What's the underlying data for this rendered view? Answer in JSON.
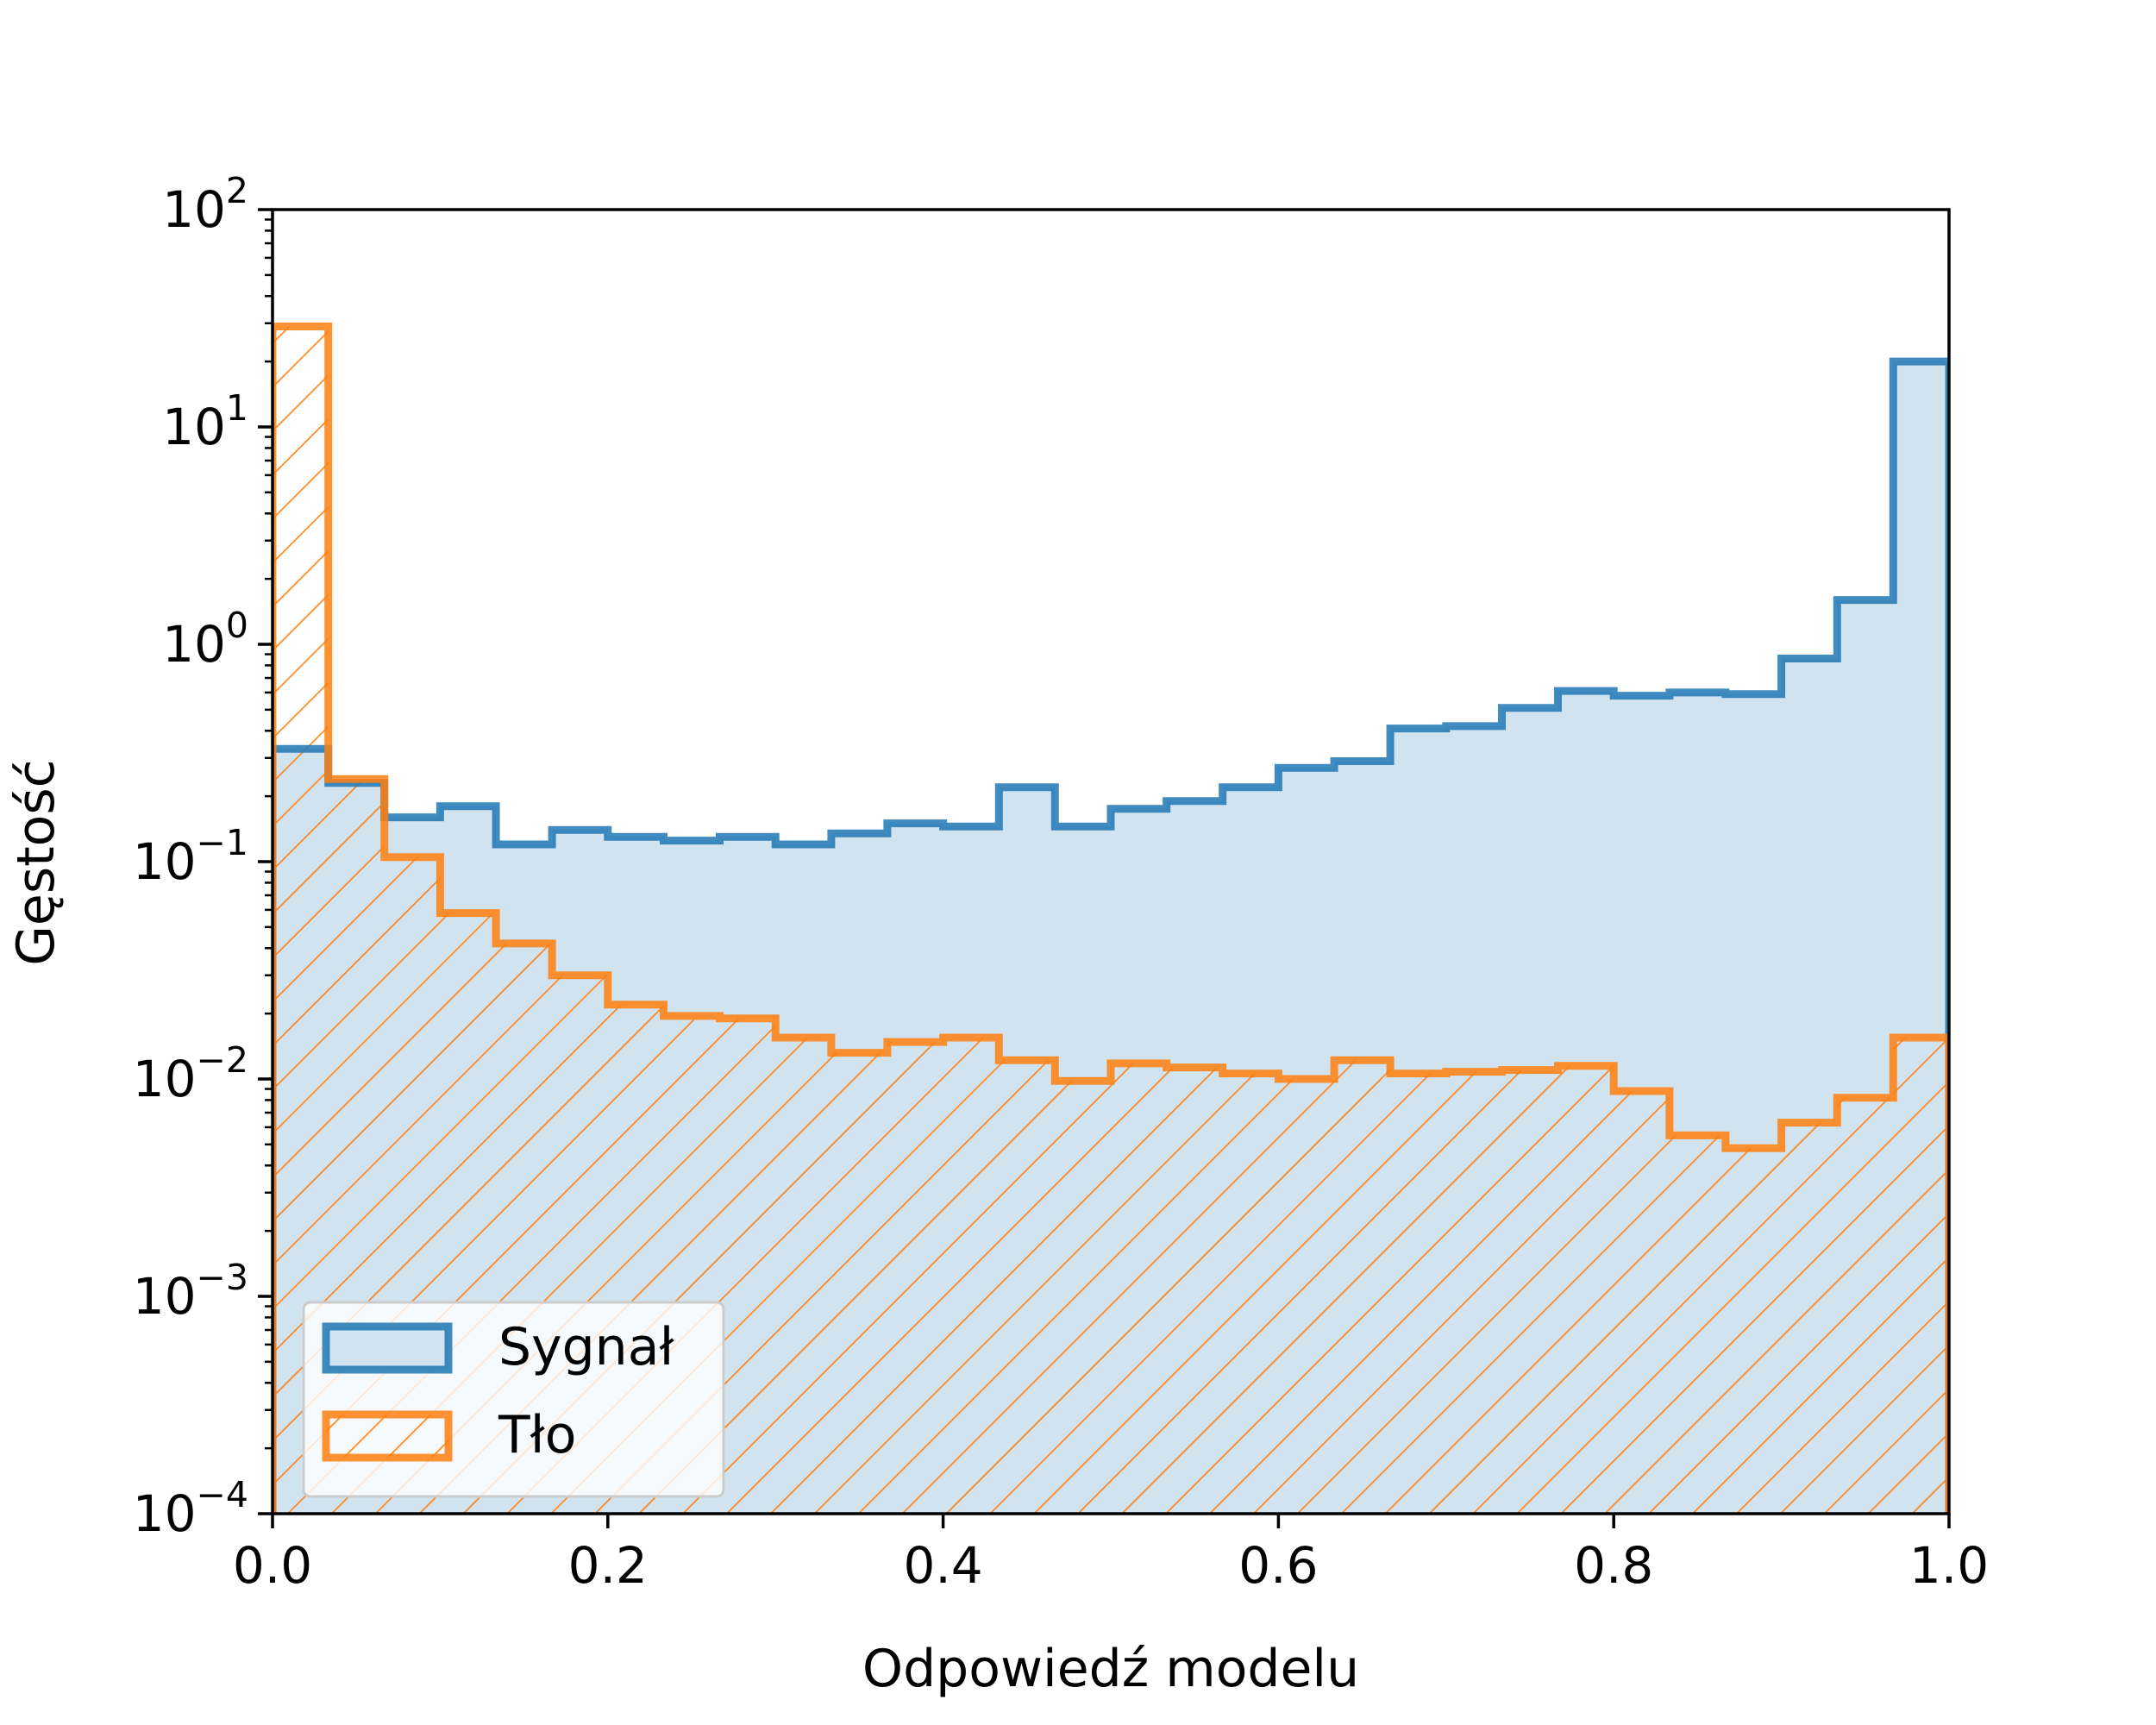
{
  "chart_data": {
    "type": "histogram",
    "title": "",
    "xlabel": "Odpowiedź modelu",
    "ylabel": "Gęstość",
    "xlim": [
      0.0,
      1.0
    ],
    "ylim": [
      0.0001,
      100
    ],
    "yscale": "log",
    "grid": false,
    "legend_position": "lower-left",
    "x_ticks": [
      "0.0",
      "0.2",
      "0.4",
      "0.6",
      "0.8",
      "1.0"
    ],
    "y_ticks": [
      {
        "base": "10",
        "exp": "−4"
      },
      {
        "base": "10",
        "exp": "−3"
      },
      {
        "base": "10",
        "exp": "−2"
      },
      {
        "base": "10",
        "exp": "−1"
      },
      {
        "base": "10",
        "exp": "0"
      },
      {
        "base": "10",
        "exp": "1"
      },
      {
        "base": "10",
        "exp": "2"
      }
    ],
    "bin_edges": [
      0.0,
      0.0333,
      0.0667,
      0.1,
      0.1333,
      0.1667,
      0.2,
      0.2333,
      0.2667,
      0.3,
      0.3333,
      0.3667,
      0.4,
      0.4333,
      0.4667,
      0.5,
      0.5333,
      0.5667,
      0.6,
      0.6333,
      0.6667,
      0.7,
      0.7333,
      0.7667,
      0.8,
      0.8333,
      0.8667,
      0.9,
      0.9333,
      0.9667,
      1.0
    ],
    "series": [
      {
        "name": "Sygnał",
        "color": "#1f77b4",
        "fill": "#d1e3ef",
        "style": "filled-step",
        "values": [
          0.33,
          0.23,
          0.16,
          0.18,
          0.12,
          0.14,
          0.13,
          0.125,
          0.13,
          0.12,
          0.135,
          0.15,
          0.145,
          0.22,
          0.145,
          0.175,
          0.19,
          0.22,
          0.27,
          0.29,
          0.41,
          0.42,
          0.51,
          0.61,
          0.58,
          0.6,
          0.59,
          0.86,
          1.6,
          20
        ]
      },
      {
        "name": "Tło",
        "color": "#ff7f0e",
        "fill": "none",
        "style": "hatched-step",
        "values": [
          29,
          0.24,
          0.105,
          0.058,
          0.042,
          0.03,
          0.022,
          0.0195,
          0.019,
          0.0155,
          0.0132,
          0.0148,
          0.0155,
          0.0122,
          0.0098,
          0.0118,
          0.0113,
          0.0106,
          0.01,
          0.0122,
          0.0106,
          0.0108,
          0.011,
          0.0115,
          0.0088,
          0.0055,
          0.0048,
          0.0063,
          0.0082,
          0.0155
        ]
      }
    ]
  }
}
